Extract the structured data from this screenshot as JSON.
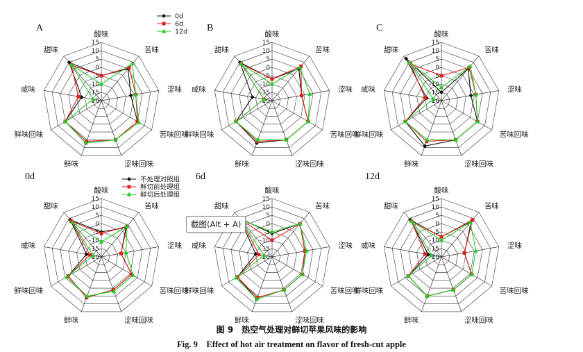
{
  "chart_data": [
    {
      "type": "radar",
      "panel": "A",
      "axes": [
        "酸味",
        "苦味",
        "涩味",
        "苦味回味",
        "涩味回味",
        "鲜味",
        "鲜味回味",
        "咸味",
        "甜味"
      ],
      "ticks": [
        "-20",
        "-15",
        "-10",
        "-5",
        "0",
        "5",
        "10",
        "15"
      ],
      "ylim": [
        -20,
        15
      ],
      "legend": [
        "0d",
        "6d",
        "12d"
      ],
      "series": [
        {
          "name": "0d",
          "values": [
            -5,
            5,
            -2,
            5,
            5,
            7,
            5,
            -8,
            10
          ]
        },
        {
          "name": "6d",
          "values": [
            -5,
            6,
            1,
            5,
            5,
            6,
            5,
            -6,
            8
          ]
        },
        {
          "name": "12d",
          "values": [
            -10,
            9,
            1,
            6,
            5,
            7,
            5,
            -15,
            8
          ]
        }
      ]
    },
    {
      "type": "radar",
      "panel": "B",
      "axes": [
        "酸味",
        "苦味",
        "涩味",
        "苦味回味",
        "涩味回味",
        "鲜味",
        "鲜味回味",
        "咸味",
        "甜味"
      ],
      "ticks": [
        "-20",
        "-15",
        "-10",
        "-5",
        "0",
        "5",
        "10",
        "15"
      ],
      "ylim": [
        -20,
        15
      ],
      "series": [
        {
          "name": "0d",
          "values": [
            -7,
            5,
            -2,
            5,
            5,
            7,
            5,
            -8,
            10
          ]
        },
        {
          "name": "6d",
          "values": [
            -7,
            7,
            -2,
            5,
            5,
            6,
            5,
            -15,
            9
          ]
        },
        {
          "name": "12d",
          "values": [
            -10,
            6,
            3,
            5,
            5,
            5,
            5,
            -15,
            9
          ]
        }
      ]
    },
    {
      "type": "radar",
      "panel": "C",
      "axes": [
        "酸味",
        "苦味",
        "涩味",
        "苦味回味",
        "涩味回味",
        "鲜味",
        "鲜味回味",
        "咸味",
        "甜味"
      ],
      "ticks": [
        "-20",
        "-15",
        "-10",
        "-5",
        "0",
        "5",
        "10",
        "15"
      ],
      "ylim": [
        -20,
        15
      ],
      "series": [
        {
          "name": "0d",
          "values": [
            -15,
            5,
            -2,
            5,
            5,
            9,
            5,
            -11,
            13
          ]
        },
        {
          "name": "6d",
          "values": [
            -5,
            6,
            1,
            5,
            5,
            6,
            5,
            -10,
            9
          ]
        },
        {
          "name": "12d",
          "values": [
            -12,
            7,
            1,
            5,
            5,
            5,
            5,
            -15,
            10
          ]
        }
      ]
    },
    {
      "type": "radar",
      "panel": "0d",
      "axes": [
        "酸味",
        "苦味",
        "涩味",
        "苦味回味",
        "涩味回味",
        "鲜味",
        "鲜味回味",
        "咸味",
        "甜味"
      ],
      "ticks": [
        "-20",
        "-15",
        "-10",
        "-5",
        "0",
        "5",
        "10",
        "15"
      ],
      "ylim": [
        -20,
        15
      ],
      "legend": [
        "不处理对照组",
        "鲜切前处理组",
        "鲜切后处理组"
      ],
      "series": [
        {
          "name": "不处理对照组",
          "values": [
            -5,
            3,
            -8,
            1,
            1,
            6,
            3,
            -11,
            9
          ]
        },
        {
          "name": "鲜切前处理组",
          "values": [
            -6,
            4,
            -8,
            1,
            1,
            6,
            3,
            -13,
            8
          ]
        },
        {
          "name": "鲜切后处理组",
          "values": [
            -11,
            4,
            -5,
            2,
            2,
            5,
            4,
            -15,
            7
          ]
        }
      ]
    },
    {
      "type": "radar",
      "panel": "6d",
      "axes": [
        "酸味",
        "苦味",
        "涩味",
        "苦味回味",
        "涩味回味",
        "鲜味",
        "鲜味回味",
        "咸味",
        "甜味"
      ],
      "ticks": [
        "-20",
        "-15",
        "-10",
        "-5",
        "0",
        "5",
        "10",
        "15"
      ],
      "ylim": [
        -20,
        15
      ],
      "series": [
        {
          "name": "不处理对照组",
          "values": [
            -6,
            6,
            0,
            1,
            1,
            7,
            4,
            -10,
            10
          ]
        },
        {
          "name": "鲜切前处理组",
          "values": [
            -10,
            6,
            0,
            1,
            1,
            6,
            4,
            -12,
            9
          ]
        },
        {
          "name": "鲜切后处理组",
          "values": [
            -5,
            6,
            1,
            1,
            1,
            7,
            5,
            -15,
            9
          ]
        }
      ]
    },
    {
      "type": "radar",
      "panel": "12d",
      "axes": [
        "酸味",
        "苦味",
        "涩味",
        "苦味回味",
        "涩味回味",
        "鲜味",
        "鲜味回味",
        "咸味",
        "甜味"
      ],
      "ticks": [
        "-20",
        "-15",
        "-10",
        "-5",
        "0",
        "5",
        "10",
        "15"
      ],
      "ylim": [
        -20,
        15
      ],
      "series": [
        {
          "name": "不处理对照组",
          "values": [
            -8,
            8,
            -6,
            1,
            1,
            5,
            3,
            -12,
            9
          ]
        },
        {
          "name": "鲜切前处理组",
          "values": [
            -8,
            9,
            -6,
            1,
            1,
            5,
            3,
            -10,
            8
          ]
        },
        {
          "name": "鲜切后处理组",
          "values": [
            -10,
            7,
            1,
            1,
            1,
            5,
            3,
            -14,
            8
          ]
        }
      ]
    }
  ],
  "colors": {
    "black": "#111111",
    "red": "#e02020",
    "green": "#22cc22",
    "grid": "#333333"
  },
  "caption": {
    "cn": "图 9　热空气处理对鲜切苹果风味的影响",
    "en": "Fig. 9　Effect of hot air treatment on flavor of fresh-cut apple"
  },
  "tooltip": "截图(Alt + A)"
}
